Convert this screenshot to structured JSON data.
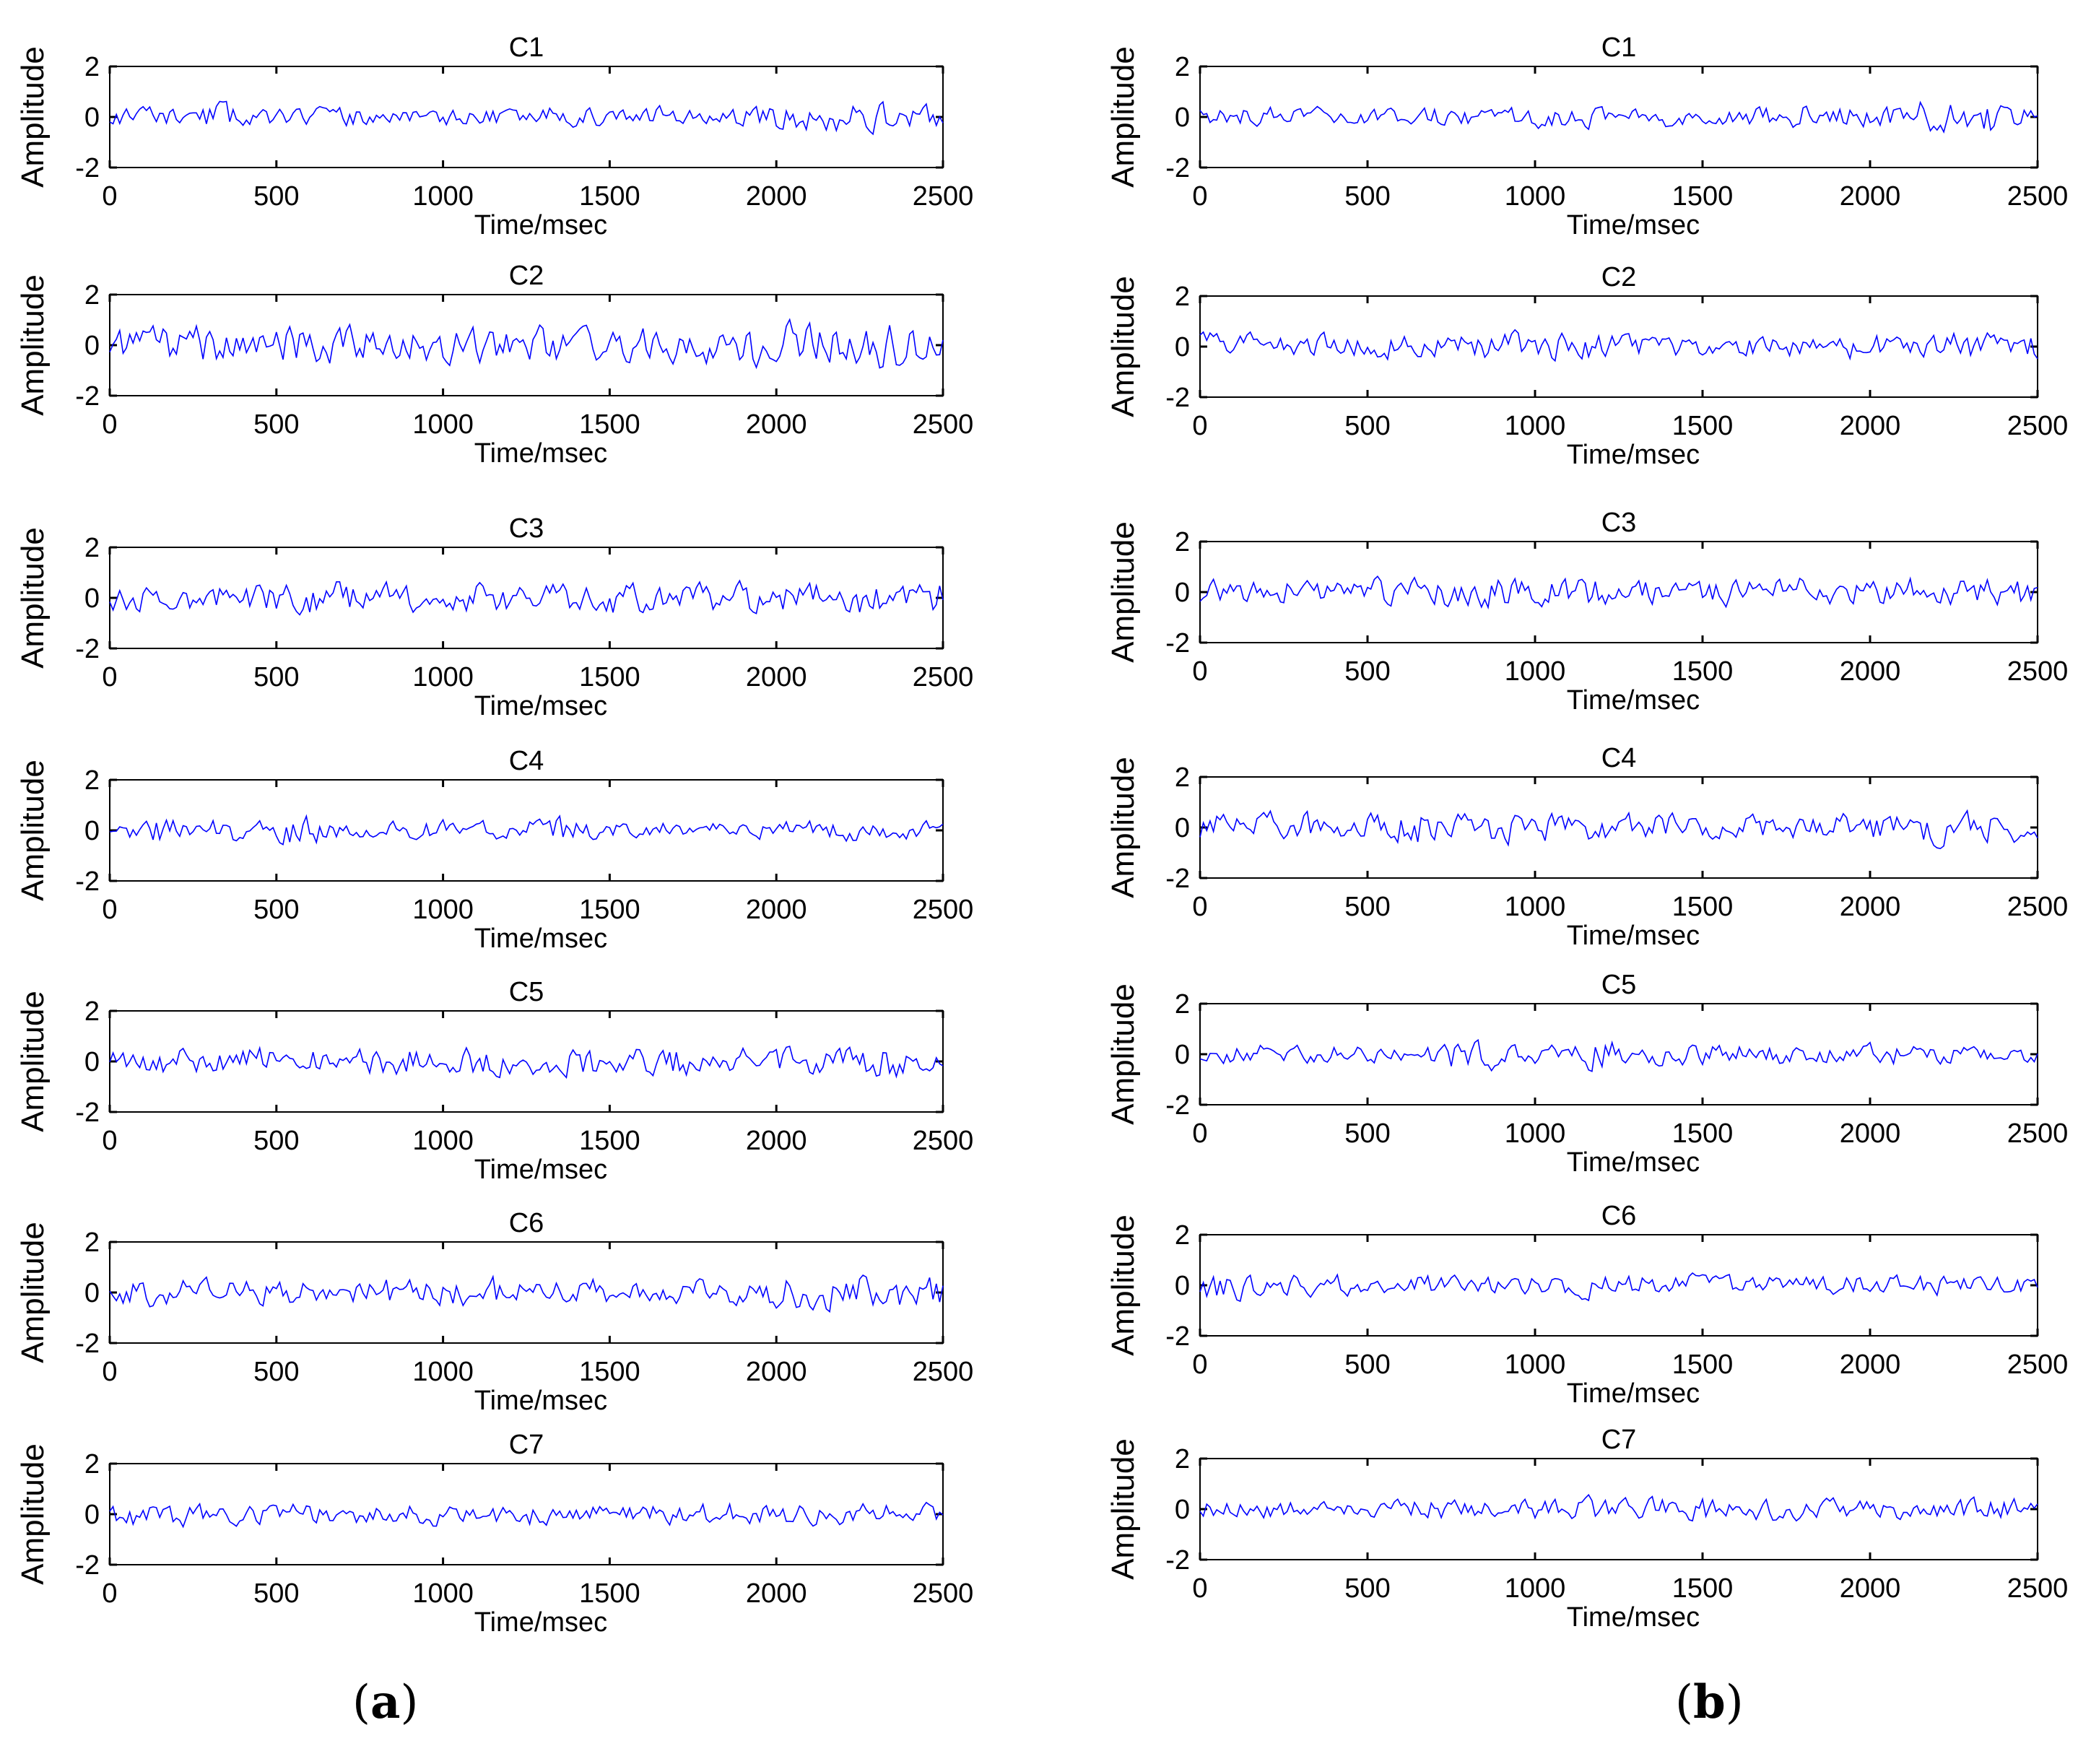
{
  "figure": {
    "panel_labels": {
      "a": {
        "open": "(",
        "letter": "a",
        "close": ")"
      },
      "b": {
        "open": "(",
        "letter": "b",
        "close": ")"
      }
    }
  },
  "style": {
    "signal_color": "#0000ff",
    "axis_color": "#000000",
    "background": "#ffffff"
  },
  "chart_data": [
    {
      "panel": "a",
      "type": "line",
      "title": "C1",
      "xlabel": "Time/msec",
      "ylabel": "Amplitude",
      "xlim": [
        0,
        2500
      ],
      "ylim": [
        -2,
        2
      ],
      "xticks": [
        0,
        500,
        1000,
        1500,
        2000,
        2500
      ],
      "yticks": [
        -2,
        0,
        2
      ],
      "series": [
        {
          "name": "C1",
          "sample_interval_ms": 10,
          "seed": 11,
          "envelope": [
            0.3,
            0.35,
            0.45,
            0.3,
            0.28,
            0.32,
            0.3,
            0.33,
            0.3,
            0.3,
            0.35,
            0.32,
            0.34,
            0.4,
            0.38,
            0.35,
            0.45,
            0.55,
            0.5,
            0.4
          ]
        }
      ]
    },
    {
      "panel": "a",
      "type": "line",
      "title": "C2",
      "xlabel": "Time/msec",
      "ylabel": "Amplitude",
      "xlim": [
        0,
        2500
      ],
      "ylim": [
        -2,
        2
      ],
      "xticks": [
        0,
        500,
        1000,
        1500,
        2000,
        2500
      ],
      "yticks": [
        -2,
        0,
        2
      ],
      "series": [
        {
          "name": "C2",
          "sample_interval_ms": 10,
          "seed": 12,
          "envelope": [
            0.55,
            0.6,
            0.65,
            0.6,
            0.6,
            0.65,
            0.6,
            0.6,
            0.62,
            0.6,
            0.65,
            0.6,
            0.6,
            0.62,
            0.65,
            0.7,
            0.8,
            0.7,
            0.8,
            0.65
          ]
        }
      ]
    },
    {
      "panel": "a",
      "type": "line",
      "title": "C3",
      "xlabel": "Time/msec",
      "ylabel": "Amplitude",
      "xlim": [
        0,
        2500
      ],
      "ylim": [
        -2,
        2
      ],
      "xticks": [
        0,
        500,
        1000,
        1500,
        2000,
        2500
      ],
      "yticks": [
        -2,
        0,
        2
      ],
      "series": [
        {
          "name": "C3",
          "sample_interval_ms": 10,
          "seed": 13,
          "envelope": [
            0.45,
            0.5,
            0.5,
            0.45,
            0.55,
            0.6,
            0.5,
            0.5,
            0.55,
            0.5,
            0.5,
            0.5,
            0.55,
            0.5,
            0.5,
            0.55,
            0.5,
            0.55,
            0.6,
            0.55
          ]
        }
      ]
    },
    {
      "panel": "a",
      "type": "line",
      "title": "C4",
      "xlabel": "Time/msec",
      "ylabel": "Amplitude",
      "xlim": [
        0,
        2500
      ],
      "ylim": [
        -2,
        2
      ],
      "xticks": [
        0,
        500,
        1000,
        1500,
        2000,
        2500
      ],
      "yticks": [
        -2,
        0,
        2
      ],
      "series": [
        {
          "name": "C4",
          "sample_interval_ms": 10,
          "seed": 14,
          "envelope": [
            0.3,
            0.45,
            0.4,
            0.35,
            0.5,
            0.35,
            0.3,
            0.3,
            0.35,
            0.3,
            0.45,
            0.35,
            0.3,
            0.3,
            0.35,
            0.3,
            0.32,
            0.35,
            0.3,
            0.3
          ]
        }
      ]
    },
    {
      "panel": "a",
      "type": "line",
      "title": "C5",
      "xlabel": "Time/msec",
      "ylabel": "Amplitude",
      "xlim": [
        0,
        2500
      ],
      "ylim": [
        -2,
        2
      ],
      "xticks": [
        0,
        500,
        1000,
        1500,
        2000,
        2500
      ],
      "yticks": [
        -2,
        0,
        2
      ],
      "series": [
        {
          "name": "C5",
          "sample_interval_ms": 10,
          "seed": 15,
          "envelope": [
            0.4,
            0.5,
            0.45,
            0.5,
            0.45,
            0.4,
            0.45,
            0.5,
            0.5,
            0.45,
            0.45,
            0.55,
            0.45,
            0.5,
            0.55,
            0.45,
            0.45,
            0.5,
            0.55,
            0.45
          ]
        }
      ]
    },
    {
      "panel": "a",
      "type": "line",
      "title": "C6",
      "xlabel": "Time/msec",
      "ylabel": "Amplitude",
      "xlim": [
        0,
        2500
      ],
      "ylim": [
        -2,
        2
      ],
      "xticks": [
        0,
        500,
        1000,
        1500,
        2000,
        2500
      ],
      "yticks": [
        -2,
        0,
        2
      ],
      "series": [
        {
          "name": "C6",
          "sample_interval_ms": 10,
          "seed": 16,
          "envelope": [
            0.5,
            0.5,
            0.45,
            0.4,
            0.45,
            0.45,
            0.5,
            0.45,
            0.45,
            0.5,
            0.45,
            0.45,
            0.45,
            0.5,
            0.45,
            0.5,
            0.55,
            0.65,
            0.6,
            0.5
          ]
        }
      ]
    },
    {
      "panel": "a",
      "type": "line",
      "title": "C7",
      "xlabel": "Time/msec",
      "ylabel": "Amplitude",
      "xlim": [
        0,
        2500
      ],
      "ylim": [
        -2,
        2
      ],
      "xticks": [
        0,
        500,
        1000,
        1500,
        2000,
        2500
      ],
      "yticks": [
        -2,
        0,
        2
      ],
      "series": [
        {
          "name": "C7",
          "sample_interval_ms": 10,
          "seed": 17,
          "envelope": [
            0.45,
            0.4,
            0.35,
            0.35,
            0.4,
            0.35,
            0.35,
            0.45,
            0.35,
            0.35,
            0.4,
            0.35,
            0.35,
            0.35,
            0.4,
            0.35,
            0.35,
            0.35,
            0.35,
            0.35
          ]
        }
      ]
    },
    {
      "panel": "b",
      "type": "line",
      "title": "C1",
      "xlabel": "Time/msec",
      "ylabel": "Amplitude",
      "xlim": [
        0,
        2500
      ],
      "ylim": [
        -2,
        2
      ],
      "xticks": [
        0,
        500,
        1000,
        1500,
        2000,
        2500
      ],
      "yticks": [
        -2,
        0,
        2
      ],
      "series": [
        {
          "name": "C1",
          "sample_interval_ms": 10,
          "seed": 21,
          "envelope": [
            0.3,
            0.35,
            0.3,
            0.3,
            0.3,
            0.35,
            0.3,
            0.3,
            0.35,
            0.35,
            0.3,
            0.35,
            0.3,
            0.35,
            0.55,
            0.4,
            0.35,
            0.55,
            0.6,
            0.4
          ]
        }
      ]
    },
    {
      "panel": "b",
      "type": "line",
      "title": "C2",
      "xlabel": "Time/msec",
      "ylabel": "Amplitude",
      "xlim": [
        0,
        2500
      ],
      "ylim": [
        -2,
        2
      ],
      "xticks": [
        0,
        500,
        1000,
        1500,
        2000,
        2500
      ],
      "yticks": [
        -2,
        0,
        2
      ],
      "series": [
        {
          "name": "C2",
          "sample_interval_ms": 10,
          "seed": 22,
          "envelope": [
            0.45,
            0.45,
            0.4,
            0.35,
            0.4,
            0.35,
            0.45,
            0.5,
            0.45,
            0.45,
            0.4,
            0.4,
            0.35,
            0.35,
            0.4,
            0.45,
            0.4,
            0.4,
            0.5,
            0.45
          ]
        }
      ]
    },
    {
      "panel": "b",
      "type": "line",
      "title": "C3",
      "xlabel": "Time/msec",
      "ylabel": "Amplitude",
      "xlim": [
        0,
        2500
      ],
      "ylim": [
        -2,
        2
      ],
      "xticks": [
        0,
        500,
        1000,
        1500,
        2000,
        2500
      ],
      "yticks": [
        -2,
        0,
        2
      ],
      "series": [
        {
          "name": "C3",
          "sample_interval_ms": 10,
          "seed": 23,
          "envelope": [
            0.4,
            0.4,
            0.45,
            0.4,
            0.45,
            0.5,
            0.5,
            0.5,
            0.45,
            0.5,
            0.45,
            0.5,
            0.45,
            0.45,
            0.5,
            0.45,
            0.5,
            0.45,
            0.45,
            0.5
          ]
        }
      ]
    },
    {
      "panel": "b",
      "type": "line",
      "title": "C4",
      "xlabel": "Time/msec",
      "ylabel": "Amplitude",
      "xlim": [
        0,
        2500
      ],
      "ylim": [
        -2,
        2
      ],
      "xticks": [
        0,
        500,
        1000,
        1500,
        2000,
        2500
      ],
      "yticks": [
        -2,
        0,
        2
      ],
      "series": [
        {
          "name": "C4",
          "sample_interval_ms": 10,
          "seed": 24,
          "envelope": [
            0.5,
            0.5,
            0.5,
            0.45,
            0.5,
            0.6,
            0.5,
            0.55,
            0.5,
            0.45,
            0.5,
            0.45,
            0.35,
            0.4,
            0.5,
            0.55,
            0.5,
            0.65,
            0.5,
            0.5
          ]
        }
      ]
    },
    {
      "panel": "b",
      "type": "line",
      "title": "C5",
      "xlabel": "Time/msec",
      "ylabel": "Amplitude",
      "xlim": [
        0,
        2500
      ],
      "ylim": [
        -2,
        2
      ],
      "xticks": [
        0,
        500,
        1000,
        1500,
        2000,
        2500
      ],
      "yticks": [
        -2,
        0,
        2
      ],
      "series": [
        {
          "name": "C5",
          "sample_interval_ms": 10,
          "seed": 25,
          "envelope": [
            0.3,
            0.35,
            0.3,
            0.3,
            0.3,
            0.4,
            0.55,
            0.4,
            0.35,
            0.5,
            0.35,
            0.35,
            0.35,
            0.45,
            0.35,
            0.3,
            0.35,
            0.3,
            0.3,
            0.3
          ]
        }
      ]
    },
    {
      "panel": "b",
      "type": "line",
      "title": "C6",
      "xlabel": "Time/msec",
      "ylabel": "Amplitude",
      "xlim": [
        0,
        2500
      ],
      "ylim": [
        -2,
        2
      ],
      "xticks": [
        0,
        500,
        1000,
        1500,
        2000,
        2500
      ],
      "yticks": [
        -2,
        0,
        2
      ],
      "series": [
        {
          "name": "C6",
          "sample_interval_ms": 10,
          "seed": 26,
          "envelope": [
            0.55,
            0.35,
            0.35,
            0.35,
            0.3,
            0.35,
            0.35,
            0.35,
            0.35,
            0.4,
            0.35,
            0.35,
            0.3,
            0.3,
            0.3,
            0.35,
            0.3,
            0.35,
            0.3,
            0.3
          ]
        }
      ]
    },
    {
      "panel": "b",
      "type": "line",
      "title": "C7",
      "xlabel": "Time/msec",
      "ylabel": "Amplitude",
      "xlim": [
        0,
        2500
      ],
      "ylim": [
        -2,
        2
      ],
      "xticks": [
        0,
        500,
        1000,
        1500,
        2000,
        2500
      ],
      "yticks": [
        -2,
        0,
        2
      ],
      "series": [
        {
          "name": "C7",
          "sample_interval_ms": 10,
          "seed": 27,
          "envelope": [
            0.3,
            0.3,
            0.3,
            0.3,
            0.3,
            0.35,
            0.3,
            0.3,
            0.35,
            0.4,
            0.35,
            0.4,
            0.45,
            0.4,
            0.35,
            0.35,
            0.35,
            0.3,
            0.35,
            0.35
          ]
        }
      ]
    }
  ]
}
